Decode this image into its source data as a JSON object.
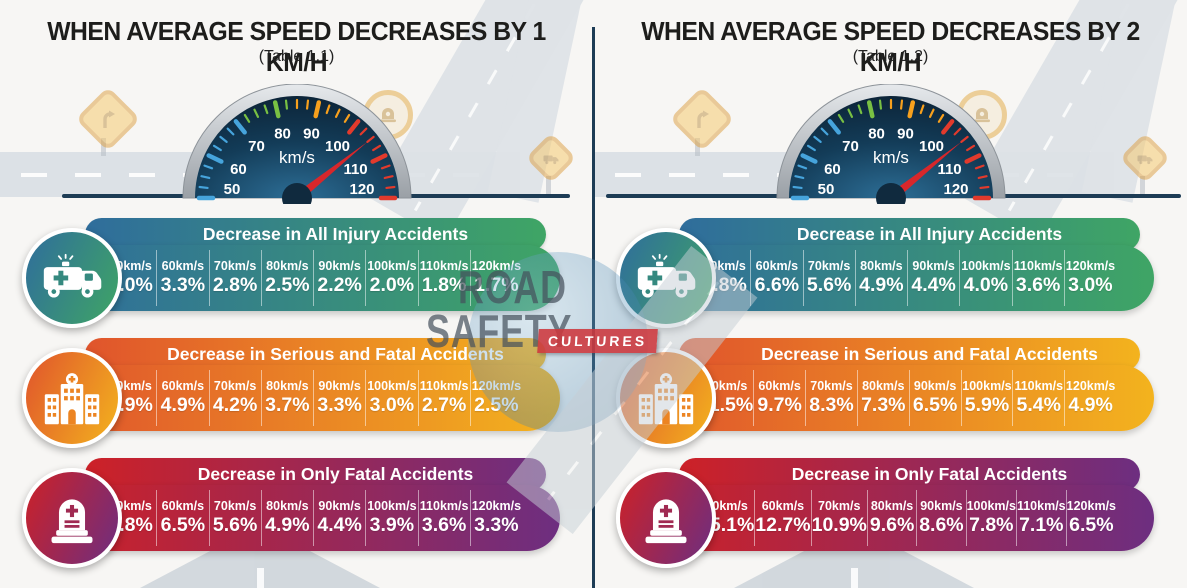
{
  "colors": {
    "navy_line": "#1d3c55",
    "needle_red": "#d8272b",
    "badge_red": "#cd373c",
    "background": "#f7f6f4"
  },
  "watermark": {
    "line1": "ROAD",
    "line2": "SAFETY",
    "badge": "CULTURES"
  },
  "panels": [
    {
      "title": "WHEN AVERAGE SPEED DECREASES BY 1 KM/H",
      "subtitle": "(Table 1.1)",
      "speedometer": {
        "unit": "km/s",
        "tick_labels": [
          "50",
          "60",
          "70",
          "80",
          "90",
          "100",
          "110",
          "120"
        ],
        "needle_value": 105
      },
      "bands": [
        {
          "title": "Decrease in All Injury Accidents",
          "icon": "ambulance-icon",
          "color_from": "#2f6d9c",
          "color_to": "#3fa565",
          "color_cut": "#35897f",
          "columns": [
            {
              "speed": "50km/s",
              "value": "4.0%"
            },
            {
              "speed": "60km/s",
              "value": "3.3%"
            },
            {
              "speed": "70km/s",
              "value": "2.8%"
            },
            {
              "speed": "80km/s",
              "value": "2.5%"
            },
            {
              "speed": "90km/s",
              "value": "2.2%"
            },
            {
              "speed": "100km/s",
              "value": "2.0%"
            },
            {
              "speed": "110km/s",
              "value": "1.8%"
            },
            {
              "speed": "120km/s",
              "value": "1.7%"
            }
          ]
        },
        {
          "title": "Decrease in Serious and Fatal Accidents",
          "icon": "hospital-icon",
          "color_from": "#e0542c",
          "color_to": "#f3b31e",
          "color_cut": "#ec8422",
          "columns": [
            {
              "speed": "50km/s",
              "value": "5.9%"
            },
            {
              "speed": "60km/s",
              "value": "4.9%"
            },
            {
              "speed": "70km/s",
              "value": "4.2%"
            },
            {
              "speed": "80km/s",
              "value": "3.7%"
            },
            {
              "speed": "90km/s",
              "value": "3.3%"
            },
            {
              "speed": "100km/s",
              "value": "3.0%"
            },
            {
              "speed": "110km/s",
              "value": "2.7%"
            },
            {
              "speed": "120km/s",
              "value": "2.5%"
            }
          ]
        },
        {
          "title": "Decrease in Only Fatal Accidents",
          "icon": "tombstone-icon",
          "color_from": "#cd2127",
          "color_to": "#6d2e80",
          "color_cut": "#a02a52",
          "columns": [
            {
              "speed": "50km/s",
              "value": "7.8%"
            },
            {
              "speed": "60km/s",
              "value": "6.5%"
            },
            {
              "speed": "70km/s",
              "value": "5.6%"
            },
            {
              "speed": "80km/s",
              "value": "4.9%"
            },
            {
              "speed": "90km/s",
              "value": "4.4%"
            },
            {
              "speed": "100km/s",
              "value": "3.9%"
            },
            {
              "speed": "110km/s",
              "value": "3.6%"
            },
            {
              "speed": "120km/s",
              "value": "3.3%"
            }
          ]
        }
      ]
    },
    {
      "title": "WHEN AVERAGE SPEED DECREASES BY 2 KM/H",
      "subtitle": "(Table 1.2)",
      "speedometer": {
        "unit": "km/s",
        "tick_labels": [
          "50",
          "60",
          "70",
          "80",
          "90",
          "100",
          "110",
          "120"
        ],
        "needle_value": 105
      },
      "bands": [
        {
          "title": "Decrease in All Injury Accidents",
          "icon": "ambulance-icon",
          "color_from": "#2f6d9c",
          "color_to": "#3fa565",
          "color_cut": "#35897f",
          "columns": [
            {
              "speed": "50km/s",
              "value": "7.8%"
            },
            {
              "speed": "60km/s",
              "value": "6.6%"
            },
            {
              "speed": "70km/s",
              "value": "5.6%"
            },
            {
              "speed": "80km/s",
              "value": "4.9%"
            },
            {
              "speed": "90km/s",
              "value": "4.4%"
            },
            {
              "speed": "100km/s",
              "value": "4.0%"
            },
            {
              "speed": "110km/s",
              "value": "3.6%"
            },
            {
              "speed": "120km/s",
              "value": "3.0%"
            }
          ]
        },
        {
          "title": "Decrease in Serious and Fatal Accidents",
          "icon": "hospital-icon",
          "color_from": "#e0542c",
          "color_to": "#f3b31e",
          "color_cut": "#ec8422",
          "columns": [
            {
              "speed": "50km/s",
              "value": "11.5%"
            },
            {
              "speed": "60km/s",
              "value": "9.7%"
            },
            {
              "speed": "70km/s",
              "value": "8.3%"
            },
            {
              "speed": "80km/s",
              "value": "7.3%"
            },
            {
              "speed": "90km/s",
              "value": "6.5%"
            },
            {
              "speed": "100km/s",
              "value": "5.9%"
            },
            {
              "speed": "110km/s",
              "value": "5.4%"
            },
            {
              "speed": "120km/s",
              "value": "4.9%"
            }
          ]
        },
        {
          "title": "Decrease in Only Fatal Accidents",
          "icon": "tombstone-icon",
          "color_from": "#cd2127",
          "color_to": "#6d2e80",
          "color_cut": "#a02a52",
          "columns": [
            {
              "speed": "50km/s",
              "value": "15.1%"
            },
            {
              "speed": "60km/s",
              "value": "12.7%"
            },
            {
              "speed": "70km/s",
              "value": "10.9%"
            },
            {
              "speed": "80km/s",
              "value": "9.6%"
            },
            {
              "speed": "90km/s",
              "value": "8.6%"
            },
            {
              "speed": "100km/s",
              "value": "7.8%"
            },
            {
              "speed": "110km/s",
              "value": "7.1%"
            },
            {
              "speed": "120km/s",
              "value": "6.5%"
            }
          ]
        }
      ]
    }
  ],
  "chart_data": [
    {
      "type": "table",
      "title": "WHEN AVERAGE SPEED DECREASES BY 1 KM/H (Table 1.1)",
      "categories": [
        "50km/s",
        "60km/s",
        "70km/s",
        "80km/s",
        "90km/s",
        "100km/s",
        "110km/s",
        "120km/s"
      ],
      "unit": "%",
      "series": [
        {
          "name": "Decrease in All Injury Accidents",
          "values": [
            4.0,
            3.3,
            2.8,
            2.5,
            2.2,
            2.0,
            1.8,
            1.7
          ]
        },
        {
          "name": "Decrease in Serious and Fatal Accidents",
          "values": [
            5.9,
            4.9,
            4.2,
            3.7,
            3.3,
            3.0,
            2.7,
            2.5
          ]
        },
        {
          "name": "Decrease in Only Fatal Accidents",
          "values": [
            7.8,
            6.5,
            5.6,
            4.9,
            4.4,
            3.9,
            3.6,
            3.3
          ]
        }
      ]
    },
    {
      "type": "table",
      "title": "WHEN AVERAGE SPEED DECREASES BY 2 KM/H (Table 1.2)",
      "categories": [
        "50km/s",
        "60km/s",
        "70km/s",
        "80km/s",
        "90km/s",
        "100km/s",
        "110km/s",
        "120km/s"
      ],
      "unit": "%",
      "series": [
        {
          "name": "Decrease in All Injury Accidents",
          "values": [
            7.8,
            6.6,
            5.6,
            4.9,
            4.4,
            4.0,
            3.6,
            3.0
          ]
        },
        {
          "name": "Decrease in Serious and Fatal Accidents",
          "values": [
            11.5,
            9.7,
            8.3,
            7.3,
            6.5,
            5.9,
            5.4,
            4.9
          ]
        },
        {
          "name": "Decrease in Only Fatal Accidents",
          "values": [
            15.1,
            12.7,
            10.9,
            9.6,
            8.6,
            7.8,
            7.1,
            6.5
          ]
        }
      ]
    }
  ]
}
